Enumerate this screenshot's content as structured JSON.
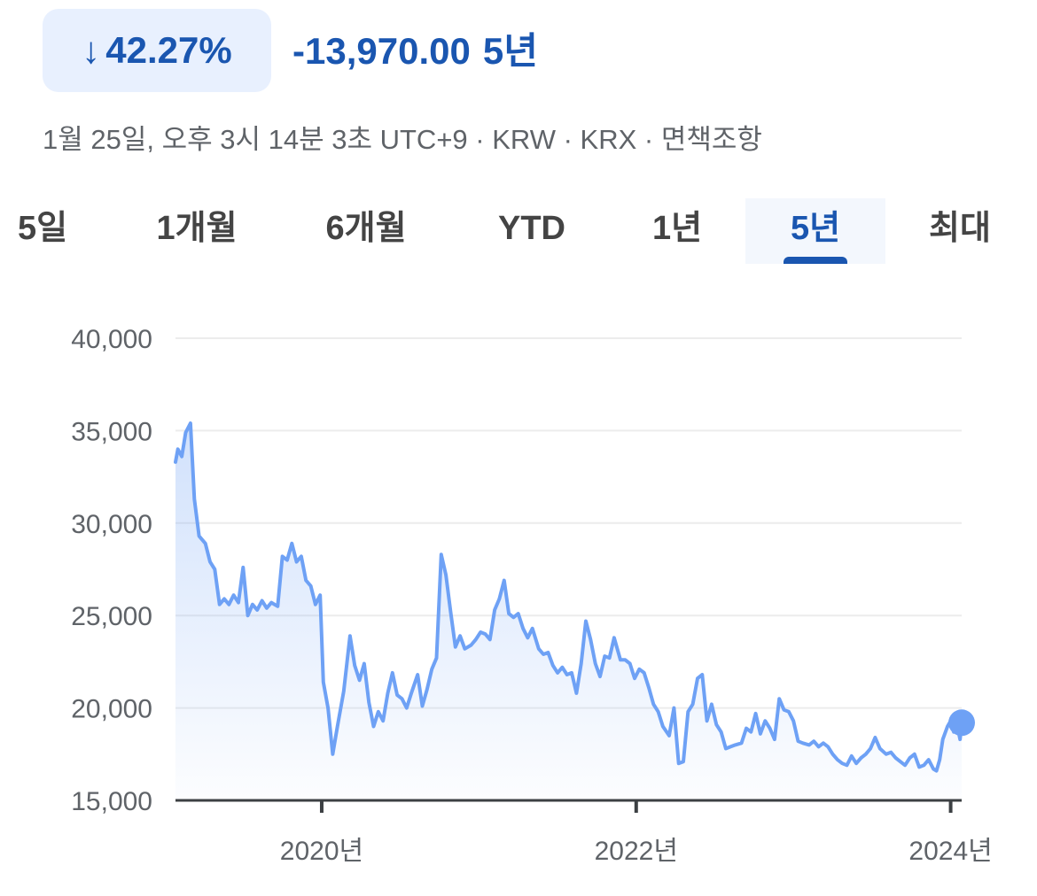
{
  "header": {
    "change_arrow": "↓",
    "change_percent": "42.27%",
    "change_absolute": "-13,970.00",
    "change_period": "5년",
    "meta": "1월 25일, 오후 3시 14분 3초 UTC+9 · KRW · KRX · 면책조항"
  },
  "tabs": [
    {
      "label": "5일",
      "active": false
    },
    {
      "label": "1개월",
      "active": false
    },
    {
      "label": "6개월",
      "active": false
    },
    {
      "label": "YTD",
      "active": false
    },
    {
      "label": "1년",
      "active": false
    },
    {
      "label": "5년",
      "active": true
    },
    {
      "label": "최대",
      "active": false
    }
  ],
  "colors": {
    "line": "#6ea1f5",
    "accent": "#1a56b0",
    "grid": "#ececec",
    "axis": "#3c4043"
  },
  "chart_data": {
    "type": "area",
    "xlabel": "",
    "ylabel": "",
    "ylim": [
      15000,
      40000
    ],
    "xlim": [
      2019.07,
      2024.07
    ],
    "y_ticks": [
      15000,
      20000,
      25000,
      30000,
      35000,
      40000
    ],
    "y_tick_labels": [
      "15,000",
      "20,000",
      "25,000",
      "30,000",
      "35,000",
      "40,000"
    ],
    "x_ticks": [
      2020,
      2022,
      2024
    ],
    "x_tick_labels": [
      "2020년",
      "2022년",
      "2024년"
    ],
    "grid": true,
    "series": [
      {
        "values": [
          [
            2019.07,
            33300
          ],
          [
            2019.085,
            34000
          ],
          [
            2019.11,
            33600
          ],
          [
            2019.135,
            34900
          ],
          [
            2019.165,
            35400
          ],
          [
            2019.19,
            31300
          ],
          [
            2019.22,
            29300
          ],
          [
            2019.26,
            28900
          ],
          [
            2019.29,
            27900
          ],
          [
            2019.32,
            27500
          ],
          [
            2019.35,
            25600
          ],
          [
            2019.38,
            25900
          ],
          [
            2019.41,
            25600
          ],
          [
            2019.44,
            26100
          ],
          [
            2019.47,
            25700
          ],
          [
            2019.5,
            27600
          ],
          [
            2019.53,
            25000
          ],
          [
            2019.56,
            25600
          ],
          [
            2019.59,
            25300
          ],
          [
            2019.62,
            25800
          ],
          [
            2019.65,
            25400
          ],
          [
            2019.68,
            25700
          ],
          [
            2019.72,
            25500
          ],
          [
            2019.75,
            28200
          ],
          [
            2019.78,
            28000
          ],
          [
            2019.81,
            28900
          ],
          [
            2019.84,
            27900
          ],
          [
            2019.87,
            28200
          ],
          [
            2019.9,
            26900
          ],
          [
            2019.93,
            26600
          ],
          [
            2019.96,
            25600
          ],
          [
            2019.99,
            26100
          ],
          [
            2020.01,
            21400
          ],
          [
            2020.04,
            20000
          ],
          [
            2020.07,
            17500
          ],
          [
            2020.1,
            19000
          ],
          [
            2020.14,
            20900
          ],
          [
            2020.18,
            23900
          ],
          [
            2020.21,
            22300
          ],
          [
            2020.24,
            21500
          ],
          [
            2020.27,
            22400
          ],
          [
            2020.3,
            20300
          ],
          [
            2020.33,
            19000
          ],
          [
            2020.36,
            19800
          ],
          [
            2020.39,
            19300
          ],
          [
            2020.42,
            20800
          ],
          [
            2020.45,
            21900
          ],
          [
            2020.48,
            20700
          ],
          [
            2020.51,
            20500
          ],
          [
            2020.54,
            20000
          ],
          [
            2020.57,
            20800
          ],
          [
            2020.61,
            21800
          ],
          [
            2020.64,
            20100
          ],
          [
            2020.67,
            21000
          ],
          [
            2020.7,
            22100
          ],
          [
            2020.73,
            22700
          ],
          [
            2020.76,
            28300
          ],
          [
            2020.79,
            27200
          ],
          [
            2020.82,
            25200
          ],
          [
            2020.85,
            23300
          ],
          [
            2020.88,
            23900
          ],
          [
            2020.91,
            23200
          ],
          [
            2020.95,
            23400
          ],
          [
            2020.98,
            23700
          ],
          [
            2021.01,
            24100
          ],
          [
            2021.04,
            24000
          ],
          [
            2021.07,
            23700
          ],
          [
            2021.1,
            25300
          ],
          [
            2021.13,
            25900
          ],
          [
            2021.16,
            26900
          ],
          [
            2021.19,
            25100
          ],
          [
            2021.22,
            24900
          ],
          [
            2021.25,
            25100
          ],
          [
            2021.28,
            24300
          ],
          [
            2021.31,
            23800
          ],
          [
            2021.34,
            24300
          ],
          [
            2021.38,
            23200
          ],
          [
            2021.41,
            22900
          ],
          [
            2021.44,
            23000
          ],
          [
            2021.47,
            22300
          ],
          [
            2021.5,
            21900
          ],
          [
            2021.53,
            22200
          ],
          [
            2021.56,
            21800
          ],
          [
            2021.59,
            21900
          ],
          [
            2021.62,
            20800
          ],
          [
            2021.65,
            22400
          ],
          [
            2021.68,
            24700
          ],
          [
            2021.71,
            23700
          ],
          [
            2021.74,
            22400
          ],
          [
            2021.77,
            21700
          ],
          [
            2021.8,
            22800
          ],
          [
            2021.83,
            22700
          ],
          [
            2021.86,
            23800
          ],
          [
            2021.9,
            22600
          ],
          [
            2021.93,
            22600
          ],
          [
            2021.96,
            22400
          ],
          [
            2021.99,
            21600
          ],
          [
            2022.02,
            22100
          ],
          [
            2022.05,
            21900
          ],
          [
            2022.08,
            21100
          ],
          [
            2022.11,
            20200
          ],
          [
            2022.14,
            19800
          ],
          [
            2022.17,
            19000
          ],
          [
            2022.21,
            18500
          ],
          [
            2022.24,
            20000
          ],
          [
            2022.27,
            17000
          ],
          [
            2022.3,
            17100
          ],
          [
            2022.33,
            19800
          ],
          [
            2022.36,
            20200
          ],
          [
            2022.39,
            21600
          ],
          [
            2022.42,
            21800
          ],
          [
            2022.45,
            19300
          ],
          [
            2022.48,
            20200
          ],
          [
            2022.51,
            19100
          ],
          [
            2022.54,
            18700
          ],
          [
            2022.57,
            17800
          ],
          [
            2022.6,
            17900
          ],
          [
            2022.63,
            18000
          ],
          [
            2022.67,
            18100
          ],
          [
            2022.7,
            18900
          ],
          [
            2022.73,
            18700
          ],
          [
            2022.76,
            19700
          ],
          [
            2022.79,
            18600
          ],
          [
            2022.82,
            19300
          ],
          [
            2022.85,
            18900
          ],
          [
            2022.88,
            18300
          ],
          [
            2022.91,
            20500
          ],
          [
            2022.94,
            19900
          ],
          [
            2022.97,
            19800
          ],
          [
            2023.0,
            19300
          ],
          [
            2023.03,
            18200
          ],
          [
            2023.06,
            18100
          ],
          [
            2023.1,
            18000
          ],
          [
            2023.13,
            18200
          ],
          [
            2023.16,
            17900
          ],
          [
            2023.19,
            18100
          ],
          [
            2023.22,
            17900
          ],
          [
            2023.25,
            17500
          ],
          [
            2023.28,
            17200
          ],
          [
            2023.31,
            17000
          ],
          [
            2023.34,
            16900
          ],
          [
            2023.37,
            17400
          ],
          [
            2023.4,
            17000
          ],
          [
            2023.43,
            17300
          ],
          [
            2023.46,
            17500
          ],
          [
            2023.49,
            17800
          ],
          [
            2023.52,
            18400
          ],
          [
            2023.55,
            17800
          ],
          [
            2023.59,
            17500
          ],
          [
            2023.62,
            17600
          ],
          [
            2023.65,
            17300
          ],
          [
            2023.68,
            17100
          ],
          [
            2023.71,
            16900
          ],
          [
            2023.74,
            17300
          ],
          [
            2023.77,
            17500
          ],
          [
            2023.8,
            16800
          ],
          [
            2023.83,
            16900
          ],
          [
            2023.86,
            17200
          ],
          [
            2023.89,
            16700
          ],
          [
            2023.91,
            16600
          ],
          [
            2023.93,
            17200
          ],
          [
            2023.95,
            18300
          ],
          [
            2023.98,
            19000
          ],
          [
            2024.0,
            19300
          ],
          [
            2024.02,
            18700
          ],
          [
            2024.04,
            19100
          ],
          [
            2024.06,
            18300
          ],
          [
            2024.07,
            19200
          ]
        ]
      }
    ]
  }
}
